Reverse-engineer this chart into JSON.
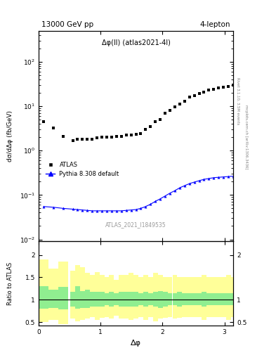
{
  "title_left": "13000 GeV pp",
  "title_right": "4-lepton",
  "plot_label": "Δφ(ll) (atlas2021-4l)",
  "watermark": "ATLAS_2021_I1849535",
  "rivet_label": "Rivet 3.1.10, 3.5M events",
  "arxiv_label": "mcplots.cern.ch [arXiv:1306.3436]",
  "ylabel_main": "dσ/dΔφ (fb/GeV)",
  "ylabel_ratio": "Ratio to ATLAS",
  "xlabel": "Δφ",
  "xlim": [
    0,
    3.14159
  ],
  "ylim_main": [
    0.009,
    500
  ],
  "ylim_ratio": [
    0.42,
    2.3
  ],
  "atlas_x": [
    0.079,
    0.236,
    0.393,
    0.55,
    0.628,
    0.707,
    0.785,
    0.864,
    0.942,
    1.021,
    1.099,
    1.178,
    1.256,
    1.335,
    1.413,
    1.492,
    1.571,
    1.649,
    1.728,
    1.806,
    1.885,
    1.963,
    2.042,
    2.12,
    2.199,
    2.277,
    2.356,
    2.434,
    2.513,
    2.592,
    2.67,
    2.749,
    2.827,
    2.906,
    2.984,
    3.063,
    3.141
  ],
  "atlas_y": [
    4.5,
    3.2,
    2.1,
    1.7,
    1.8,
    1.8,
    1.8,
    1.8,
    1.9,
    2.0,
    2.0,
    2.0,
    2.1,
    2.1,
    2.2,
    2.2,
    2.3,
    2.4,
    3.0,
    3.5,
    4.5,
    5.0,
    7.0,
    8.0,
    9.5,
    11.0,
    13.0,
    16.0,
    17.0,
    19.0,
    21.0,
    23.0,
    24.0,
    26.0,
    27.0,
    28.0,
    30.0
  ],
  "mc_x": [
    0.079,
    0.236,
    0.393,
    0.55,
    0.628,
    0.707,
    0.785,
    0.864,
    0.942,
    1.021,
    1.099,
    1.178,
    1.256,
    1.335,
    1.413,
    1.492,
    1.571,
    1.649,
    1.728,
    1.806,
    1.885,
    1.963,
    2.042,
    2.12,
    2.199,
    2.277,
    2.356,
    2.434,
    2.513,
    2.592,
    2.67,
    2.749,
    2.827,
    2.906,
    2.984,
    3.063,
    3.141
  ],
  "mc_y": [
    0.055,
    0.053,
    0.05,
    0.048,
    0.047,
    0.046,
    0.045,
    0.044,
    0.044,
    0.044,
    0.044,
    0.044,
    0.044,
    0.044,
    0.045,
    0.046,
    0.047,
    0.05,
    0.055,
    0.062,
    0.072,
    0.082,
    0.095,
    0.11,
    0.125,
    0.145,
    0.162,
    0.18,
    0.195,
    0.21,
    0.225,
    0.235,
    0.245,
    0.25,
    0.255,
    0.26,
    0.265
  ],
  "ratio_green_upper": [
    1.3,
    1.22,
    1.28,
    1.18,
    1.3,
    1.2,
    1.22,
    1.18,
    1.18,
    1.18,
    1.15,
    1.18,
    1.15,
    1.18,
    1.18,
    1.18,
    1.18,
    1.15,
    1.18,
    1.15,
    1.18,
    1.2,
    1.18,
    1.15,
    1.15,
    1.18,
    1.15,
    1.15,
    1.15,
    1.15,
    1.18,
    1.15,
    1.15,
    1.15,
    1.15,
    1.15,
    1.15
  ],
  "ratio_green_lower": [
    0.8,
    0.82,
    0.78,
    0.85,
    0.8,
    0.82,
    0.82,
    0.85,
    0.85,
    0.85,
    0.88,
    0.85,
    0.88,
    0.85,
    0.85,
    0.85,
    0.85,
    0.88,
    0.85,
    0.88,
    0.85,
    0.82,
    0.85,
    0.88,
    0.88,
    0.85,
    0.88,
    0.88,
    0.88,
    0.88,
    0.85,
    0.88,
    0.88,
    0.88,
    0.88,
    0.88,
    0.88
  ],
  "ratio_yellow_upper": [
    1.9,
    1.7,
    1.85,
    1.65,
    1.78,
    1.72,
    1.6,
    1.55,
    1.62,
    1.55,
    1.5,
    1.55,
    1.45,
    1.55,
    1.55,
    1.6,
    1.55,
    1.5,
    1.55,
    1.5,
    1.6,
    1.55,
    1.5,
    1.5,
    1.55,
    1.5,
    1.5,
    1.5,
    1.5,
    1.5,
    1.55,
    1.5,
    1.5,
    1.5,
    1.5,
    1.55,
    1.5
  ],
  "ratio_yellow_lower": [
    0.5,
    0.55,
    0.45,
    0.58,
    0.52,
    0.55,
    0.58,
    0.62,
    0.55,
    0.6,
    0.62,
    0.58,
    0.65,
    0.58,
    0.58,
    0.55,
    0.58,
    0.62,
    0.55,
    0.62,
    0.52,
    0.58,
    0.6,
    0.62,
    0.58,
    0.6,
    0.62,
    0.62,
    0.62,
    0.62,
    0.55,
    0.62,
    0.62,
    0.62,
    0.62,
    0.55,
    0.62
  ],
  "atlas_color": "#000000",
  "mc_color": "#0000ff",
  "green_color": "#90ee90",
  "yellow_color": "#ffff99",
  "legend_atlas": "ATLAS",
  "legend_mc": "Pythia 8.308 default"
}
